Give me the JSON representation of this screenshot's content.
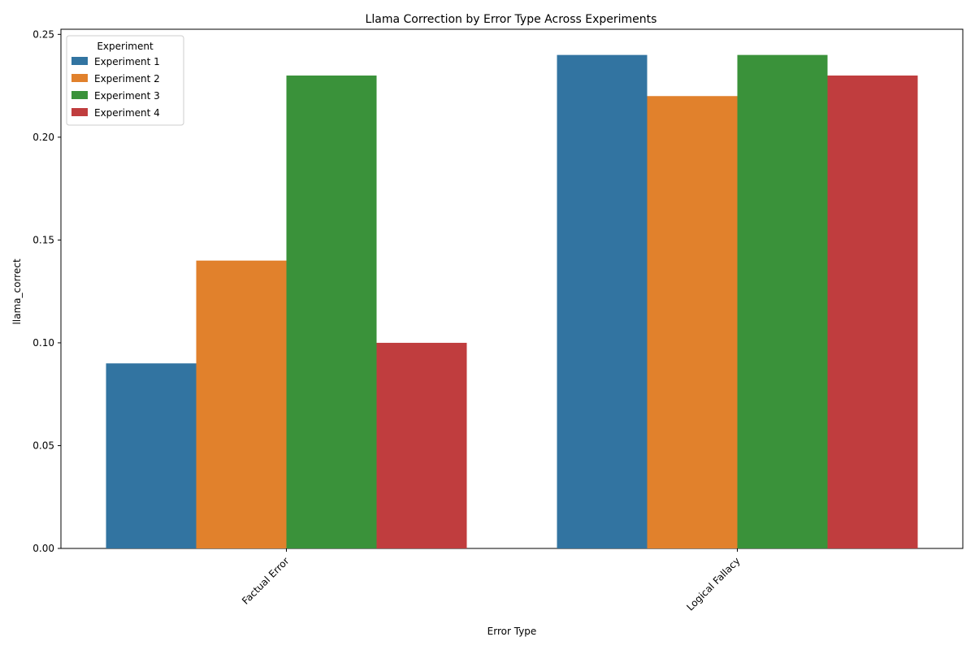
{
  "chart_data": {
    "type": "bar",
    "title": "Llama Correction by Error Type Across Experiments",
    "xlabel": "Error Type",
    "ylabel": "llama_correct",
    "categories": [
      "Factual Error",
      "Logical Fallacy"
    ],
    "series": [
      {
        "name": "Experiment 1",
        "color": "#3274a1",
        "values": [
          0.09,
          0.24
        ]
      },
      {
        "name": "Experiment 2",
        "color": "#e1812c",
        "values": [
          0.14,
          0.22
        ]
      },
      {
        "name": "Experiment 3",
        "color": "#3a923a",
        "values": [
          0.23,
          0.24
        ]
      },
      {
        "name": "Experiment 4",
        "color": "#c03d3e",
        "values": [
          0.1,
          0.23
        ]
      }
    ],
    "ylim": [
      0,
      0.25
    ],
    "yticks": [
      "0.00",
      "0.05",
      "0.10",
      "0.15",
      "0.20",
      "0.25"
    ],
    "legend": {
      "title": "Experiment",
      "placement": "top-left"
    },
    "xtick_rotation_deg": 45,
    "grid": false
  }
}
